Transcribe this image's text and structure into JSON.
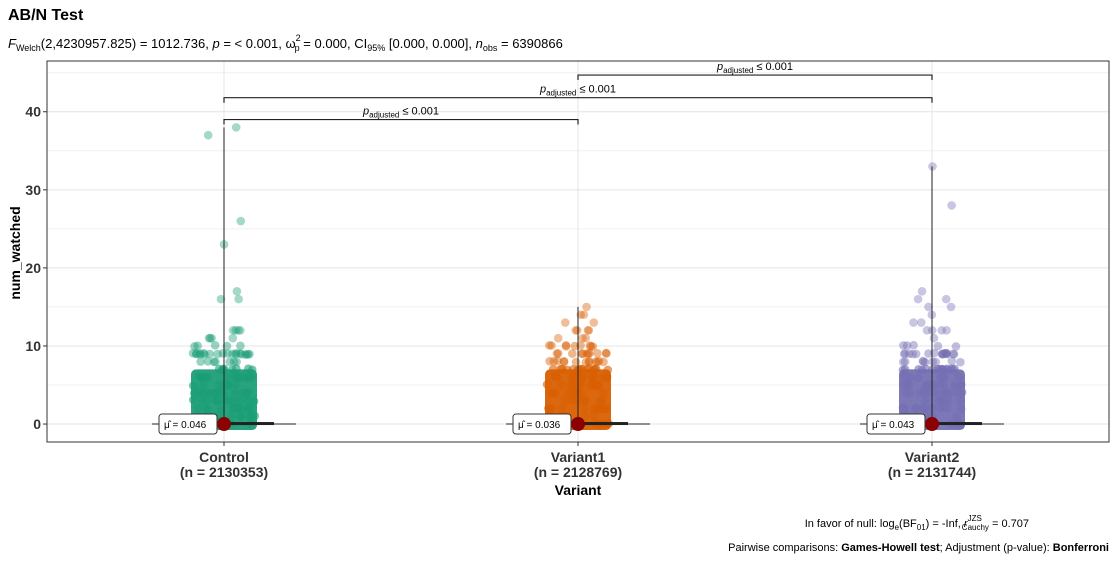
{
  "chart_data": {
    "type": "scatter",
    "title": "AB/N Test",
    "subtitle": {
      "f": "F",
      "f_sub": "Welch",
      "stat": "(2,4230957.825) = 1012.736, ",
      "p": "p",
      "p_text": " = < 0.001, ",
      "omega": "ω",
      "omega_sub": "p",
      "omega_sup": "2",
      "omega_text": " = 0.000, CI",
      "ci_sub": "95%",
      "ci_text": " [0.000, 0.000], ",
      "n": "n",
      "n_sub": "obs",
      "n_text": " = 6390866"
    },
    "xlabel": "Variant",
    "ylabel": "num_watched",
    "ylim": [
      -2.3,
      46.5
    ],
    "yticks": [
      0,
      10,
      20,
      30,
      40
    ],
    "grid": true,
    "groups": [
      {
        "name": "Control",
        "n_label": "(n = 2130353)",
        "color": "#1b9e77",
        "mean_label": " = 0.046",
        "max": 38,
        "outliers": [
          38,
          37,
          26,
          23,
          17,
          16,
          16,
          12,
          12,
          12,
          12,
          11,
          11,
          11,
          11
        ]
      },
      {
        "name": "Variant1",
        "n_label": "(n = 2128769)",
        "color": "#d95f02",
        "mean_label": " = 0.036",
        "max": 15,
        "outliers": [
          15,
          14,
          14,
          13,
          13,
          12,
          12,
          12,
          12,
          11,
          11,
          11
        ]
      },
      {
        "name": "Variant2",
        "n_label": "(n = 2131744)",
        "color": "#7570b3",
        "mean_label": " = 0.043",
        "max": 33,
        "outliers": [
          33,
          28,
          17,
          16,
          16,
          15,
          15,
          14,
          13,
          13,
          12,
          12,
          12,
          12,
          11
        ]
      }
    ],
    "mean_symbol": "μ̂",
    "comparisons": [
      {
        "from": 0,
        "to": 1,
        "y": 39.0,
        "p": "p",
        "p_sub": "adjusted",
        "p_text": " ≤ 0.001"
      },
      {
        "from": 0,
        "to": 2,
        "y": 41.8,
        "p": "p",
        "p_sub": "adjusted",
        "p_text": " ≤ 0.001"
      },
      {
        "from": 1,
        "to": 2,
        "y": 44.7,
        "p": "p",
        "p_sub": "adjusted",
        "p_text": " ≤ 0.001"
      }
    ],
    "caption_bf": {
      "pre": "In favor of null: log",
      "e_sub": "e",
      "mid": "(BF",
      "bf_sub": "01",
      "post": ") = -Inf, ",
      "r": "r",
      "r_sup": "JZS",
      "r_sub": "Cauchy",
      "tail": " = 0.707"
    },
    "caption_pw": {
      "pre": "Pairwise comparisons: ",
      "test": "Games-Howell test",
      "mid": "; Adjustment (p-value): ",
      "adj": "Bonferroni"
    }
  }
}
